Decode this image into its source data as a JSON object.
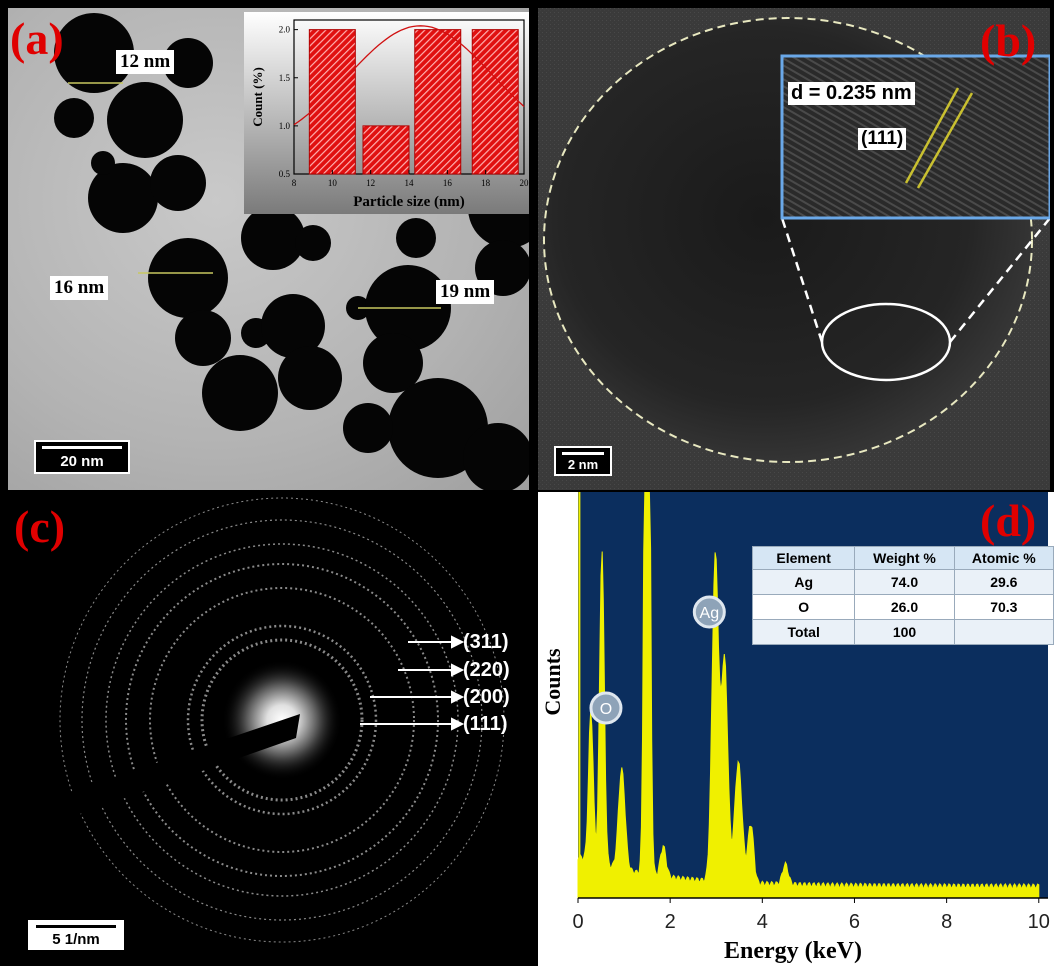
{
  "panels": {
    "a": {
      "label": "(a)",
      "scale": "20 nm",
      "sizes": [
        "12 nm",
        "16 nm",
        "19 nm"
      ]
    },
    "b": {
      "label": "(b)",
      "scale": "2 nm",
      "d_spacing": "d = 0.235 nm",
      "plane": "(111)"
    },
    "c": {
      "label": "(c)",
      "scale": "5 1/nm",
      "rings": [
        "(311)",
        "(220)",
        "(200)",
        "(111)"
      ]
    },
    "d": {
      "label": "(d)"
    }
  },
  "chart_data": [
    {
      "type": "bar",
      "xlabel": "Particle size (nm)",
      "ylabel": "Count (%)",
      "x": [
        10,
        12.8,
        15.5,
        18.5
      ],
      "values": [
        2.0,
        1.0,
        2.0,
        2.0
      ],
      "xlim": [
        8,
        20
      ],
      "ylim": [
        0.5,
        2.1
      ],
      "xticks": [
        "8",
        "10",
        "12",
        "14",
        "16",
        "18",
        "20"
      ],
      "yticks": [
        "0.5",
        "1.0",
        "1.5",
        "2.0"
      ],
      "fit": "gaussian",
      "color": "#e01010"
    },
    {
      "type": "line",
      "xlabel": "Energy (keV)",
      "ylabel": "Counts",
      "xlim": [
        0,
        10.2
      ],
      "xticks": [
        "0",
        "2",
        "4",
        "6",
        "8",
        "10"
      ],
      "peaks": [
        {
          "label": "O",
          "x": 0.52
        },
        {
          "label": "Ag",
          "x": 2.98
        }
      ],
      "table": {
        "headers": [
          "Element",
          "Weight %",
          "Atomic %"
        ],
        "rows": [
          [
            "Ag",
            "74.0",
            "29.6"
          ],
          [
            "O",
            "26.0",
            "70.3"
          ],
          [
            "Total",
            "100",
            ""
          ]
        ]
      },
      "background_color": "#0b2e5e",
      "line_color": "#f0f000"
    }
  ]
}
